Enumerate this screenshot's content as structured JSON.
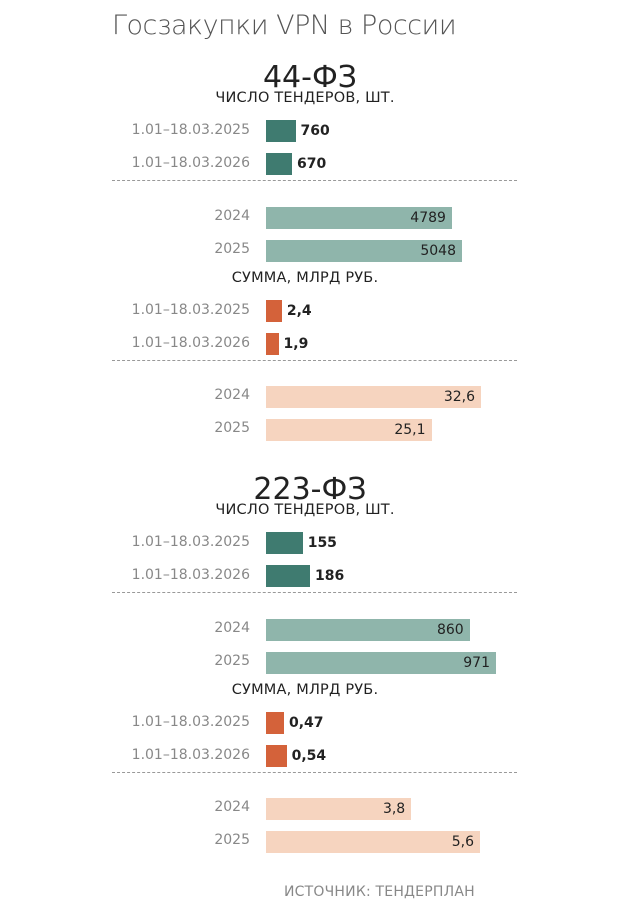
{
  "title": "Госзакупки VPN в России",
  "source": "ИСТОЧНИК: ТЕНДЕРПЛАН",
  "colors": {
    "count_recent": "#3f7b70",
    "count_year": "#8fb5ab",
    "sum_recent": "#d4623a",
    "sum_year": "#f6d4bf"
  },
  "chart_data": [
    {
      "type": "bar",
      "title": "44-ФЗ",
      "panels": [
        {
          "subtitle": "ЧИСЛО ТЕНДЕРОВ, ШТ.",
          "kind": "count",
          "recent": {
            "categories": [
              "1.01–18.03.2025",
              "1.01–18.03.2026"
            ],
            "values": [
              760,
              670
            ],
            "labels": [
              "760",
              "670"
            ]
          },
          "years": {
            "categories": [
              "2024",
              "2025"
            ],
            "values": [
              4789,
              5048
            ],
            "labels": [
              "4789",
              "5048"
            ]
          }
        },
        {
          "subtitle": "СУММА, МЛРД РУБ.",
          "kind": "sum",
          "recent": {
            "categories": [
              "1.01–18.03.2025",
              "1.01–18.03.2026"
            ],
            "values": [
              2.4,
              1.9
            ],
            "labels": [
              "2,4",
              "1,9"
            ]
          },
          "years": {
            "categories": [
              "2024",
              "2025"
            ],
            "values": [
              32.6,
              25.1
            ],
            "labels": [
              "32,6",
              "25,1"
            ]
          }
        }
      ]
    },
    {
      "type": "bar",
      "title": "223-ФЗ",
      "panels": [
        {
          "subtitle": "ЧИСЛО ТЕНДЕРОВ, ШТ.",
          "kind": "count",
          "recent": {
            "categories": [
              "1.01–18.03.2025",
              "1.01–18.03.2026"
            ],
            "values": [
              155,
              186
            ],
            "labels": [
              "155",
              "186"
            ]
          },
          "years": {
            "categories": [
              "2024",
              "2025"
            ],
            "values": [
              860,
              971
            ],
            "labels": [
              "860",
              "971"
            ]
          }
        },
        {
          "subtitle": "СУММА, МЛРД РУБ.",
          "kind": "sum",
          "recent": {
            "categories": [
              "1.01–18.03.2025",
              "1.01–18.03.2026"
            ],
            "values": [
              0.47,
              0.54
            ],
            "labels": [
              "0,47",
              "0,54"
            ]
          },
          "years": {
            "categories": [
              "2024",
              "2025"
            ],
            "values": [
              3.8,
              5.6
            ],
            "labels": [
              "3,8",
              "5,6"
            ]
          }
        }
      ]
    }
  ]
}
